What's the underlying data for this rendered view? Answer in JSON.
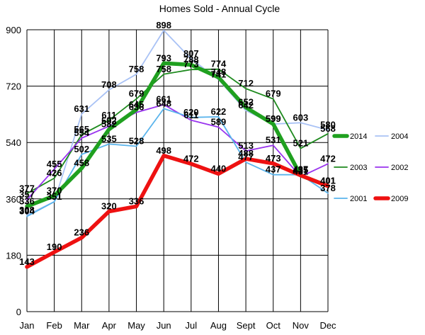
{
  "chart_data": {
    "type": "line",
    "title": "Homes Sold - Annual Cycle",
    "xlabel": "",
    "ylabel": "",
    "categories": [
      "Jan",
      "Feb",
      "Mar",
      "Apr",
      "May",
      "Jun",
      "Jul",
      "Aug",
      "Sept",
      "Oct",
      "Nov",
      "Dec"
    ],
    "ylim": [
      0,
      900
    ],
    "yticks": [
      0,
      180,
      360,
      540,
      720,
      900
    ],
    "grid": true,
    "legend_position": "right",
    "series": [
      {
        "name": "2014",
        "color": "#1fa01f",
        "weight": "heavy",
        "values": [
          336,
          370,
          458,
          582,
          645,
          793,
          788,
          748,
          652,
          599,
          435,
          401
        ]
      },
      {
        "name": "2004",
        "color": "#a9c2f5",
        "weight": "light",
        "values": [
          308,
          351,
          631,
          708,
          758,
          898,
          807,
          741,
          642,
          599,
          603,
          580
        ]
      },
      {
        "name": "2003",
        "color": "#1e8a1e",
        "weight": "light",
        "values": [
          377,
          426,
          565,
          611,
          679,
          758,
          773,
          774,
          712,
          679,
          521,
          568
        ]
      },
      {
        "name": "2002",
        "color": "#9933ee",
        "weight": "light",
        "values": [
          357,
          455,
          554,
          592,
          636,
          661,
          611,
          589,
          513,
          531,
          431,
          472
        ]
      },
      {
        "name": "2001",
        "color": "#5ab4ec",
        "weight": "light",
        "values": [
          304,
          351,
          502,
          535,
          528,
          648,
          620,
          622,
          477,
          437,
          437,
          378
        ]
      },
      {
        "name": "2009",
        "color": "#ee1111",
        "weight": "heavy",
        "values": [
          143,
          190,
          236,
          320,
          336,
          498,
          472,
          440,
          488,
          473,
          435,
          401
        ]
      }
    ]
  }
}
